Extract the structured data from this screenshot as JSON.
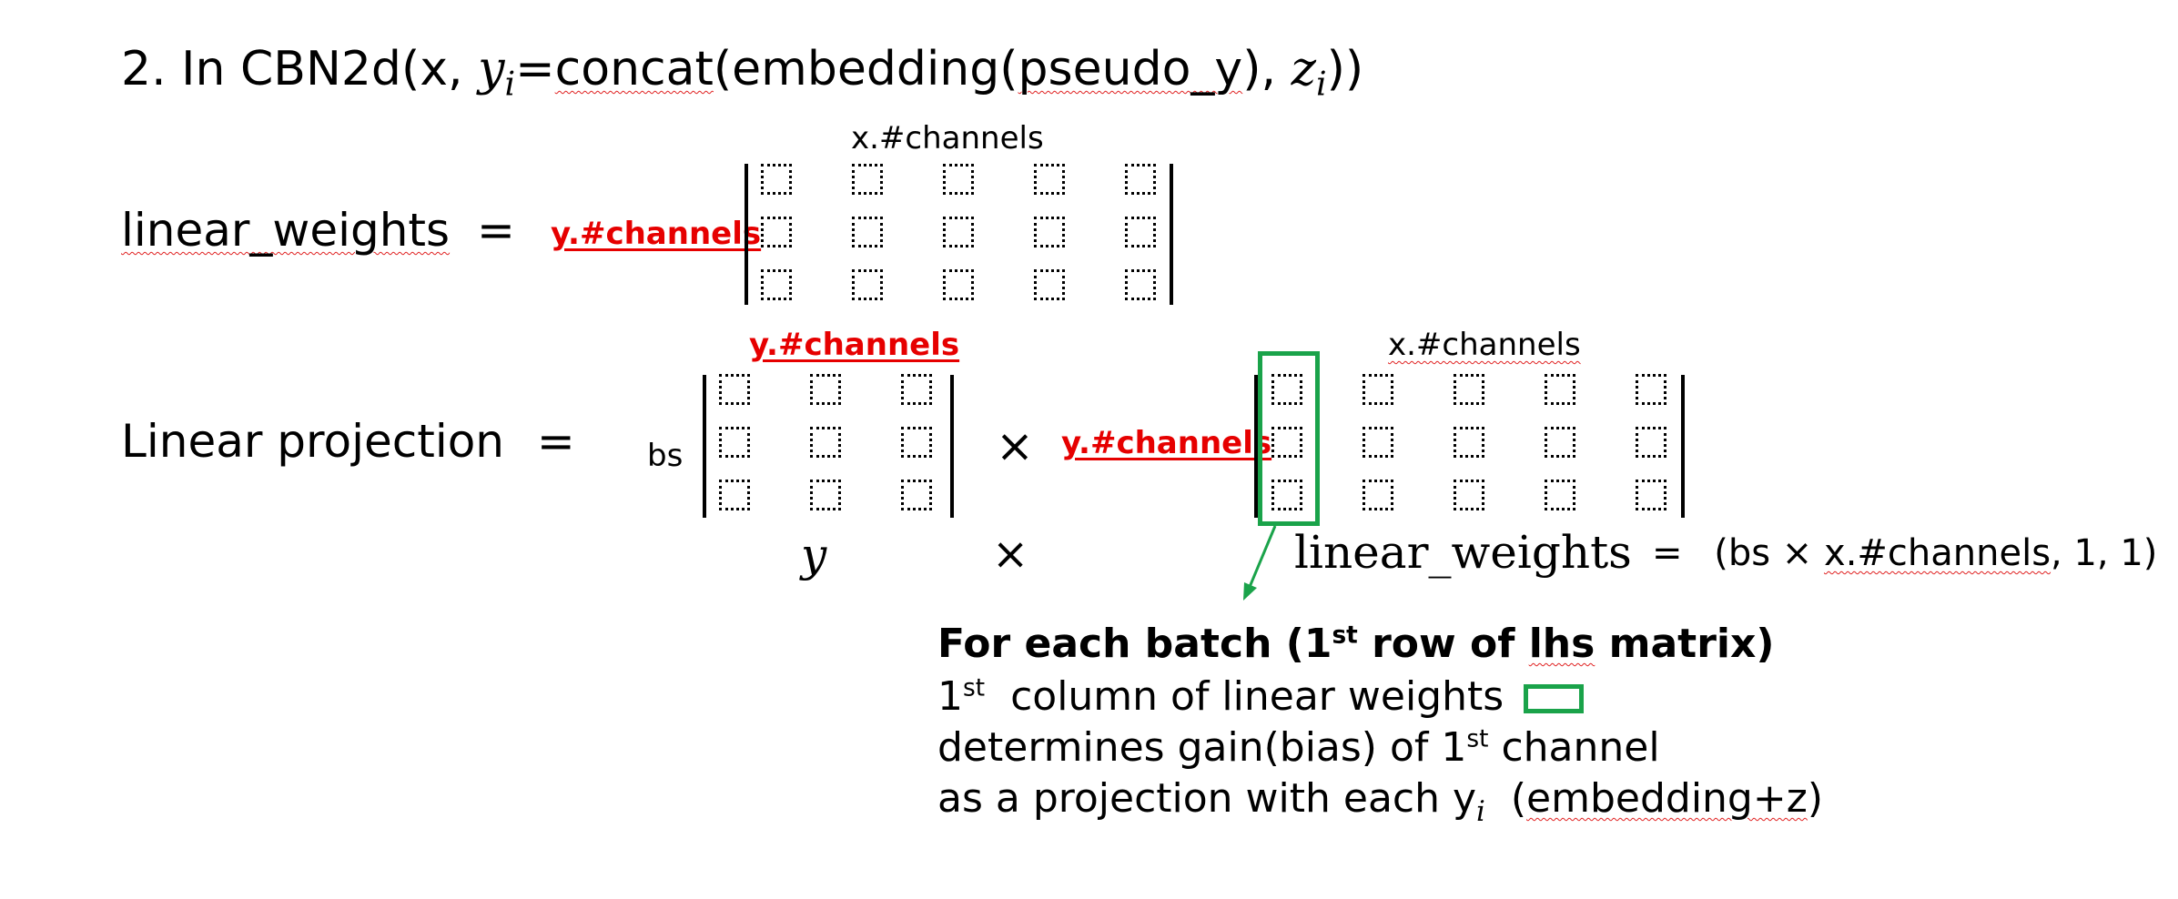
{
  "title": {
    "prefix": "2. In CBN2d(x, ",
    "y_var": "y",
    "y_sub": "i",
    "eq": "=",
    "concat": "concat",
    "open": "(embedding(",
    "pseudo_y": "pseudo_y",
    "mid": "), ",
    "z_var": "z",
    "z_sub": "i",
    "close": "))"
  },
  "weights_row": {
    "label": "linear_weights",
    "eq": "=",
    "col_label": "x.#channels",
    "row_label": "y.#channels",
    "rows": 3,
    "cols": 5
  },
  "projection_row": {
    "label": "Linear projection",
    "eq": "=",
    "left_matrix": {
      "col_label": "y.#channels",
      "row_label": "bs",
      "rows": 3,
      "cols": 3,
      "caption": "y"
    },
    "times_symbol": "×",
    "times_below": "×",
    "right_matrix": {
      "col_label": "x.#channels",
      "row_label": "y.#channels",
      "rows": 3,
      "cols": 5,
      "caption": "linear_weights"
    },
    "result_eq": "=",
    "result_prefix": "(bs × ",
    "result_underlined": "x.#channels",
    "result_suffix": ", 1, 1)"
  },
  "note": {
    "heading_prefix": "For each batch (1",
    "heading_sup": "st",
    "heading_mid": " row of ",
    "heading_lhs": "lhs",
    "heading_suffix": " matrix)",
    "line1_num": "1",
    "line1_sup": "st",
    "line1_text": "  column of linear weights",
    "line2_prefix": "determines gain(bias) of 1",
    "line2_sup": "st",
    "line2_suffix": " channel",
    "line3_prefix": "as a projection with each y",
    "line3_sub": "i",
    "line3_open": "  (",
    "line3_wavy": "embedding+z",
    "line3_close": ")"
  },
  "colors": {
    "highlight": "#1aa34a",
    "accent_red": "#e60000"
  }
}
